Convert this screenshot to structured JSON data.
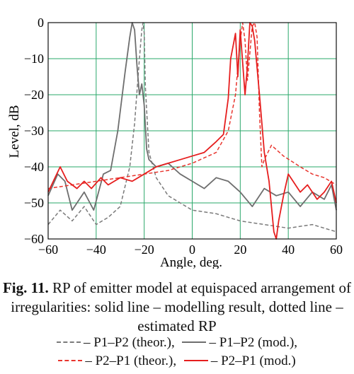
{
  "chart_data": {
    "type": "line",
    "title": "",
    "xlabel": "Angle, deg.",
    "ylabel": "Level, dB",
    "xlim": [
      -60,
      60
    ],
    "ylim": [
      -60,
      0
    ],
    "xticks": [
      -60,
      -40,
      -20,
      0,
      20,
      40,
      60
    ],
    "yticks": [
      0,
      -10,
      -20,
      -30,
      -40,
      -50,
      -60
    ],
    "xtick_labels": [
      "−60",
      "−40",
      "−20",
      "0",
      "20",
      "40",
      "60"
    ],
    "ytick_labels": [
      "0",
      "−10",
      "−20",
      "−30",
      "−40",
      "−50",
      "−60"
    ],
    "grid": true,
    "grid_color": "#2aa86a",
    "series": [
      {
        "name": "P1–P2 (theor.)",
        "color": "#7a7a7a",
        "style": "dashed",
        "x": [
          -60,
          -55,
          -50,
          -45,
          -40,
          -35,
          -30,
          -26,
          -24,
          -22,
          -21,
          -20.5,
          -20,
          -19.5,
          -18,
          -15,
          -10,
          -5,
          0,
          10,
          20,
          30,
          40,
          50,
          60
        ],
        "y": [
          -56,
          -52,
          -55,
          -51,
          -56,
          -54,
          -51,
          -40,
          -28,
          -10,
          -2,
          0,
          -3,
          -18,
          -36,
          -43,
          -48,
          -50,
          -52,
          -53,
          -55,
          -56,
          -57,
          -56,
          -58
        ]
      },
      {
        "name": "P1–P2 (mod.)",
        "color": "#6e6e6e",
        "style": "solid",
        "x": [
          -60,
          -56,
          -53,
          -50,
          -45,
          -41,
          -37,
          -34,
          -31,
          -28,
          -26,
          -25,
          -24,
          -23,
          -22,
          -21,
          -20,
          -19,
          -18,
          -15,
          -10,
          -5,
          0,
          5,
          10,
          15,
          20,
          25,
          30,
          35,
          40,
          45,
          50,
          55,
          58,
          60
        ],
        "y": [
          -48,
          -42,
          -44,
          -52,
          -47,
          -52,
          -42,
          -41,
          -30,
          -14,
          -4,
          0,
          -2,
          -12,
          -20,
          -17,
          -23,
          -35,
          -38,
          -40,
          -39,
          -42,
          -44,
          -46,
          -43,
          -44,
          -47,
          -51,
          -46,
          -48,
          -47,
          -51,
          -47,
          -49,
          -45,
          -52
        ]
      },
      {
        "name": "P2–P1 (theor.)",
        "color": "#e8352e",
        "style": "dashed",
        "x": [
          -60,
          -50,
          -40,
          -30,
          -20,
          -10,
          0,
          10,
          15,
          18,
          20,
          21,
          22,
          23,
          25,
          26,
          27,
          28,
          29,
          30,
          33,
          38,
          45,
          50,
          55,
          60
        ],
        "y": [
          -46,
          -45,
          -44,
          -43,
          -42,
          -41,
          -39,
          -36,
          -30,
          -20,
          -5,
          0,
          -5,
          -16,
          -1,
          0,
          -4,
          -25,
          -40,
          -38,
          -34,
          -37,
          -40,
          -42,
          -43,
          -45
        ]
      },
      {
        "name": "P2–P1 (mod.)",
        "color": "#e61e1e",
        "style": "solid",
        "x": [
          -60,
          -55,
          -52,
          -48,
          -45,
          -42,
          -38,
          -35,
          -30,
          -25,
          -20,
          -15,
          -10,
          -5,
          0,
          5,
          10,
          13,
          15,
          16,
          18,
          19,
          20,
          22,
          23,
          24,
          25,
          26,
          28,
          30,
          32,
          34,
          35,
          36,
          38,
          40,
          45,
          48,
          52,
          55,
          58,
          60
        ],
        "y": [
          -47,
          -40,
          -44,
          -46,
          -44,
          -46,
          -43,
          -45,
          -43,
          -44,
          -42,
          -40,
          -39,
          -38,
          -37,
          -36,
          -33,
          -31,
          -21,
          -10,
          -3,
          -15,
          -2,
          -20,
          -12,
          0,
          -1,
          -5,
          -20,
          -36,
          -44,
          -58,
          -60,
          -55,
          -48,
          -42,
          -47,
          -45,
          -49,
          -47,
          -44,
          -50
        ]
      }
    ]
  },
  "caption": {
    "fig_label": "Fig. 11.",
    "text": "RP of emitter model at equispaced arrangement of irregularities: solid line – modelling result, dotted line – estimated RP"
  },
  "legend": {
    "items": [
      {
        "label": "– P1–P2 (theor.),",
        "color": "#7a7a7a",
        "style": "dashed"
      },
      {
        "label": "– P1–P2 (mod.),",
        "color": "#6e6e6e",
        "style": "solid"
      },
      {
        "label": "– P2–P1 (theor.),",
        "color": "#e8352e",
        "style": "dashed"
      },
      {
        "label": "– P2–P1 (mod.)",
        "color": "#e61e1e",
        "style": "solid"
      }
    ]
  }
}
